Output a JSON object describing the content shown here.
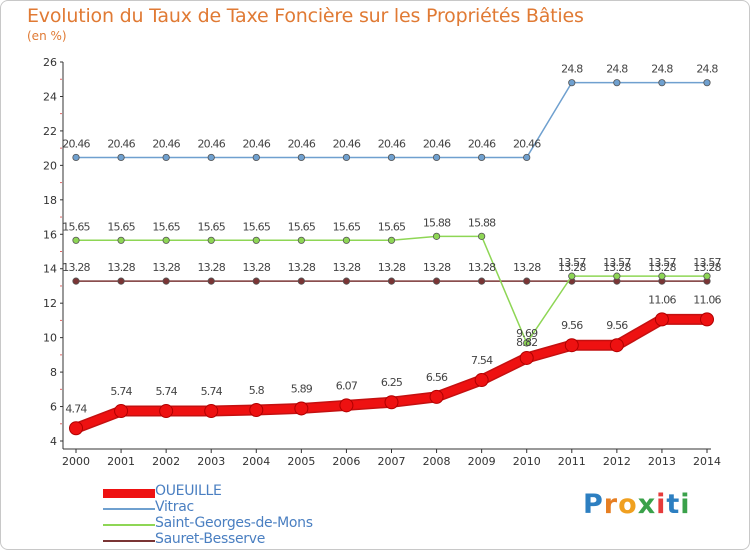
{
  "title": "Evolution du Taux de Taxe Foncière sur les Propriétés Bâties",
  "unit_label": "(en %)",
  "logo": {
    "text": "Proxiti",
    "letters": [
      "P",
      "r",
      "o",
      "x",
      "i",
      "t",
      "i"
    ],
    "colors": [
      "#2d7fc1",
      "#e67e22",
      "#f0a020",
      "#3aa14a",
      "#e63b3b",
      "#2d7fc1",
      "#3aa14a"
    ]
  },
  "chart_data": {
    "type": "line",
    "title": "Evolution du Taux de Taxe Foncière sur les Propriétés Bâties",
    "ylabel": "(en %)",
    "xlabel": "",
    "ylim": [
      4,
      26
    ],
    "yticks": [
      4,
      6,
      8,
      10,
      12,
      14,
      16,
      18,
      20,
      22,
      24,
      26
    ],
    "categories": [
      "2000",
      "2001",
      "2002",
      "2003",
      "2004",
      "2005",
      "2006",
      "2007",
      "2008",
      "2009",
      "2010",
      "2011",
      "2012",
      "2013",
      "2014"
    ],
    "series": [
      {
        "name": "OUEUILLE",
        "color": "#ee1111",
        "values": [
          4.74,
          5.74,
          5.74,
          5.74,
          5.8,
          5.89,
          6.07,
          6.25,
          6.56,
          7.54,
          8.82,
          9.56,
          9.56,
          11.06,
          11.06
        ],
        "labels": [
          "4.74",
          "5.74",
          "5.74",
          "5.74",
          "5.8",
          "5.89",
          "6.07",
          "6.25",
          "6.56",
          "7.54",
          "8.82",
          "9.56",
          "9.56",
          "11.06",
          "11.06"
        ]
      },
      {
        "name": "Vitrac",
        "color": "#6fa0cf",
        "values": [
          20.46,
          20.46,
          20.46,
          20.46,
          20.46,
          20.46,
          20.46,
          20.46,
          20.46,
          20.46,
          20.46,
          24.8,
          24.8,
          24.8,
          24.8
        ],
        "labels": [
          "20.46",
          "20.46",
          "20.46",
          "20.46",
          "20.46",
          "20.46",
          "20.46",
          "20.46",
          "20.46",
          "20.46",
          "20.46",
          "24.8",
          "24.8",
          "24.8",
          "24.8"
        ]
      },
      {
        "name": "Saint-Georges-de-Mons",
        "color": "#8ed655",
        "values": [
          15.65,
          15.65,
          15.65,
          15.65,
          15.65,
          15.65,
          15.65,
          15.65,
          15.88,
          15.88,
          9.69,
          13.57,
          13.57,
          13.57,
          13.57
        ],
        "labels": [
          "15.65",
          "15.65",
          "15.65",
          "15.65",
          "15.65",
          "15.65",
          "15.65",
          "15.65",
          "15.88",
          "15.88",
          "9.69",
          "13.57",
          "13.57",
          "13.57",
          "13.57"
        ]
      },
      {
        "name": "Sauret-Besserve",
        "color": "#7a3535",
        "values": [
          13.28,
          13.28,
          13.28,
          13.28,
          13.28,
          13.28,
          13.28,
          13.28,
          13.28,
          13.28,
          13.28,
          13.28,
          13.28,
          13.28,
          13.28
        ],
        "labels": [
          "13.28",
          "13.28",
          "13.28",
          "13.28",
          "13.28",
          "13.28",
          "13.28",
          "13.28",
          "13.28",
          "13.28",
          "13.28",
          "13.28",
          "13.28",
          "13.28",
          "13.28"
        ]
      }
    ],
    "legend": [
      "OUEUILLE",
      "Vitrac",
      "Saint-Georges-de-Mons",
      "Sauret-Besserve"
    ],
    "legend_position": "bottom-left",
    "grid": false
  }
}
